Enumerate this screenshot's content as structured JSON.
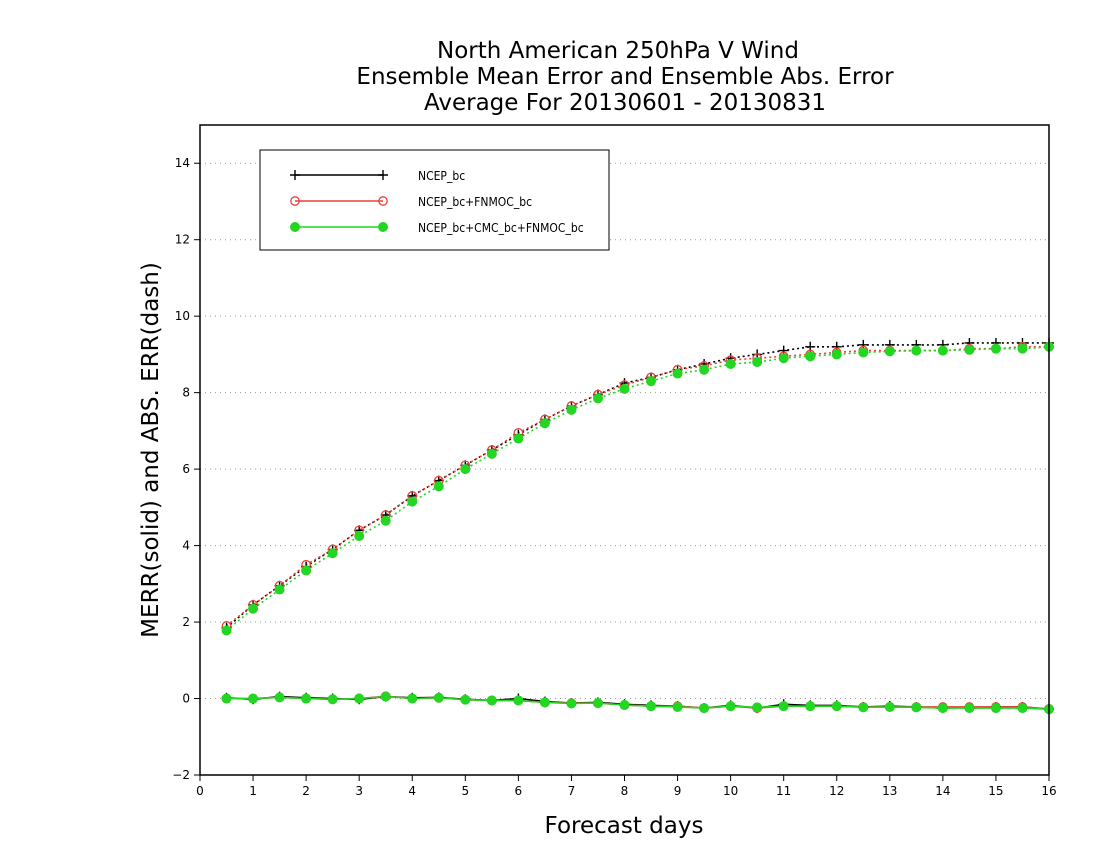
{
  "chart_data": {
    "type": "line",
    "title_lines": [
      "North American 250hPa V Wind",
      "Ensemble Mean Error and Ensemble Abs. Error",
      "Average For 20130601 - 20130831"
    ],
    "xlabel": "Forecast days",
    "ylabel": "MERR(solid) and ABS. ERR(dash)",
    "xlim": [
      0,
      16
    ],
    "ylim": [
      -2,
      15
    ],
    "xticks": [
      0,
      1,
      2,
      3,
      4,
      5,
      6,
      7,
      8,
      9,
      10,
      11,
      12,
      13,
      14,
      15,
      16
    ],
    "yticks": [
      -2,
      0,
      2,
      4,
      6,
      8,
      10,
      12,
      14
    ],
    "grid": "horizontal dotted",
    "legend_position": "top-left",
    "x": [
      0.5,
      1.0,
      1.5,
      2.0,
      2.5,
      3.0,
      3.5,
      4.0,
      4.5,
      5.0,
      5.5,
      6.0,
      6.5,
      7.0,
      7.5,
      8.0,
      8.5,
      9.0,
      9.5,
      10.0,
      10.5,
      11.0,
      11.5,
      12.0,
      12.5,
      13.0,
      13.5,
      14.0,
      14.5,
      15.0,
      15.5,
      16.0
    ],
    "series": [
      {
        "name": "NCEP_bc",
        "color": "#000000",
        "marker": "plus",
        "merr": [
          0.02,
          -0.02,
          0.05,
          0.02,
          0.0,
          -0.02,
          0.05,
          0.02,
          0.03,
          -0.02,
          -0.05,
          0.0,
          -0.08,
          -0.12,
          -0.1,
          -0.15,
          -0.18,
          -0.2,
          -0.25,
          -0.18,
          -0.25,
          -0.15,
          -0.18,
          -0.18,
          -0.22,
          -0.2,
          -0.22,
          -0.25,
          -0.23,
          -0.22,
          -0.22,
          -0.28
        ],
        "abs_err": [
          1.85,
          2.45,
          2.95,
          3.45,
          3.9,
          4.4,
          4.8,
          5.3,
          5.7,
          6.1,
          6.5,
          6.9,
          7.3,
          7.65,
          7.95,
          8.25,
          8.4,
          8.6,
          8.75,
          8.9,
          9.0,
          9.1,
          9.2,
          9.2,
          9.25,
          9.25,
          9.25,
          9.25,
          9.3,
          9.3,
          9.3,
          9.3
        ]
      },
      {
        "name": "NCEP_bc+FNMOC_bc",
        "color": "#e8413a",
        "marker": "circle-open",
        "merr": [
          0.0,
          0.0,
          0.03,
          0.0,
          -0.02,
          0.0,
          0.06,
          0.0,
          0.02,
          -0.03,
          -0.05,
          -0.05,
          -0.1,
          -0.12,
          -0.12,
          -0.17,
          -0.2,
          -0.2,
          -0.25,
          -0.2,
          -0.25,
          -0.2,
          -0.2,
          -0.2,
          -0.22,
          -0.22,
          -0.22,
          -0.22,
          -0.22,
          -0.22,
          -0.22,
          -0.27
        ],
        "abs_err": [
          1.9,
          2.45,
          2.95,
          3.5,
          3.9,
          4.4,
          4.8,
          5.3,
          5.7,
          6.1,
          6.5,
          6.95,
          7.3,
          7.65,
          7.95,
          8.2,
          8.4,
          8.6,
          8.7,
          8.85,
          8.9,
          8.95,
          9.0,
          9.05,
          9.1,
          9.1,
          9.1,
          9.1,
          9.15,
          9.15,
          9.2,
          9.2
        ]
      },
      {
        "name": "NCEP_bc+CMC_bc+FNMOC_bc",
        "color": "#22d622",
        "marker": "circle-filled",
        "merr": [
          0.0,
          0.0,
          0.03,
          0.0,
          -0.02,
          0.0,
          0.05,
          0.0,
          0.02,
          -0.03,
          -0.05,
          -0.05,
          -0.1,
          -0.13,
          -0.12,
          -0.17,
          -0.2,
          -0.22,
          -0.25,
          -0.2,
          -0.23,
          -0.2,
          -0.2,
          -0.2,
          -0.23,
          -0.22,
          -0.23,
          -0.25,
          -0.25,
          -0.25,
          -0.25,
          -0.28
        ],
        "abs_err": [
          1.78,
          2.35,
          2.85,
          3.35,
          3.8,
          4.25,
          4.65,
          5.15,
          5.55,
          6.0,
          6.4,
          6.8,
          7.2,
          7.55,
          7.85,
          8.1,
          8.3,
          8.5,
          8.6,
          8.75,
          8.8,
          8.9,
          8.95,
          9.0,
          9.05,
          9.08,
          9.1,
          9.1,
          9.12,
          9.15,
          9.15,
          9.2
        ]
      }
    ]
  }
}
